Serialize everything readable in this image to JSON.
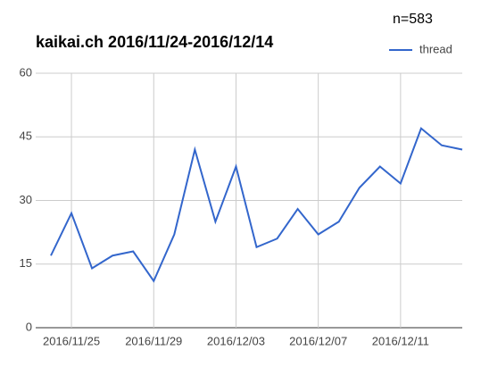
{
  "chart_data": {
    "type": "line",
    "title": "kaikai.ch 2016/11/24-2016/12/14",
    "annotation": "n=583",
    "x": [
      "2016/11/24",
      "2016/11/25",
      "2016/11/26",
      "2016/11/27",
      "2016/11/28",
      "2016/11/29",
      "2016/11/30",
      "2016/12/01",
      "2016/12/02",
      "2016/12/03",
      "2016/12/04",
      "2016/12/05",
      "2016/12/06",
      "2016/12/07",
      "2016/12/08",
      "2016/12/09",
      "2016/12/10",
      "2016/12/11",
      "2016/12/12",
      "2016/12/13",
      "2016/12/14"
    ],
    "series": [
      {
        "name": "thread",
        "color": "#3366cc",
        "values": [
          17,
          27,
          14,
          17,
          18,
          11,
          22,
          42,
          25,
          38,
          19,
          21,
          28,
          22,
          25,
          33,
          38,
          34,
          47,
          43,
          42
        ]
      }
    ],
    "xticks": [
      "2016/11/25",
      "2016/11/29",
      "2016/12/03",
      "2016/12/07",
      "2016/12/11"
    ],
    "ylim": [
      0,
      60
    ],
    "yticks": [
      0,
      15,
      30,
      45,
      60
    ],
    "grid": true,
    "legend": "top-right"
  }
}
